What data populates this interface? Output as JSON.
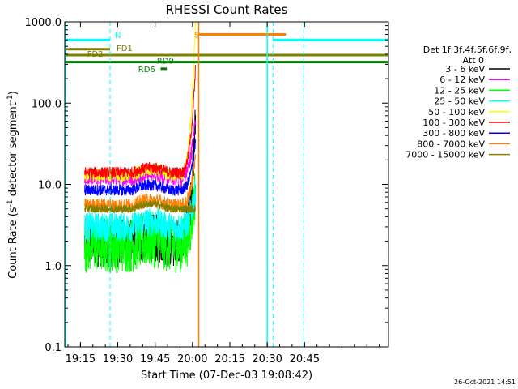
{
  "chart_data": {
    "type": "line",
    "title": "RHESSI Count Rates",
    "xlabel": "Start Time (07-Dec-03 19:08:42)",
    "ylabel_main": "Count Rate (s",
    "ylabel_sup1": "-1",
    "ylabel_mid": " detector segment",
    "ylabel_sup2": "-1",
    "ylabel_end": ")",
    "yscale": "log",
    "ylim": [
      0.1,
      1000
    ],
    "xlim_minutes": [
      0,
      130
    ],
    "x_ticks": [
      {
        "label": "19:15",
        "min": 6.3
      },
      {
        "label": "19:30",
        "min": 21.3
      },
      {
        "label": "19:45",
        "min": 36.3
      },
      {
        "label": "20:00",
        "min": 51.3
      },
      {
        "label": "20:15",
        "min": 66.3
      },
      {
        "label": "20:30",
        "min": 81.3
      },
      {
        "label": "20:45",
        "min": 96.3
      }
    ],
    "y_ticks": [
      {
        "label": "1000.0",
        "v": 1000
      },
      {
        "label": "100.0",
        "v": 100
      },
      {
        "label": "10.0",
        "v": 10
      },
      {
        "label": "1.0",
        "v": 1
      },
      {
        "label": "0.1",
        "v": 0.1
      }
    ],
    "legend_header": [
      "Det 1f,3f,4f,5f,6f,9f,",
      "Att 0"
    ],
    "series": [
      {
        "name": "3 - 6 keV",
        "color": "#000000",
        "level": 1.9,
        "noise": 0.3,
        "peak": 45
      },
      {
        "name": "6 - 12 keV",
        "color": "#ff00ff",
        "level": 12.0,
        "noise": 0.1,
        "peak": 60
      },
      {
        "name": "12 - 25 keV",
        "color": "#00ff00",
        "level": 1.8,
        "noise": 0.35,
        "peak": 8
      },
      {
        "name": "25 - 50 keV",
        "color": "#00ffff",
        "level": 3.0,
        "noise": 0.18,
        "peak": 8
      },
      {
        "name": "50 - 100 keV",
        "color": "#ffff00",
        "level": 13.0,
        "noise": 0.08,
        "peak": 700
      },
      {
        "name": "100 - 300 keV",
        "color": "#ff0000",
        "level": 14.0,
        "noise": 0.07,
        "peak": 200
      },
      {
        "name": "300 - 800 keV",
        "color": "#0000ff",
        "level": 8.5,
        "noise": 0.07,
        "peak": 30
      },
      {
        "name": "800 - 7000 keV",
        "color": "#ff7f00",
        "level": 5.5,
        "noise": 0.09,
        "peak": 20
      },
      {
        "name": "7000 - 15000 keV",
        "color": "#7f7f00",
        "level": 5.0,
        "noise": 0.05,
        "peak": 5
      }
    ],
    "data_span_minutes": [
      8.0,
      52.5
    ],
    "rise_start_minutes": 46.0,
    "flare_peak_minutes": 52.3,
    "markers": {
      "night_bands": [
        {
          "start": 0.0,
          "end": 18.2
        },
        {
          "start": 83.6,
          "end": 130.0
        }
      ],
      "night_level": 600,
      "night_label": "N",
      "saa_band": {
        "start": 53.8,
        "end": 88.8,
        "level": 700
      },
      "saa_label": "S",
      "saa_vline_minutes": 53.8,
      "fd1": {
        "start": 0.0,
        "end": 130.0,
        "level": 390,
        "label": "FD1",
        "left_level": 460,
        "left_end": 18.2
      },
      "fd2_label": "FD2",
      "rd9": {
        "start": 0.0,
        "end": 130.0,
        "level": 320,
        "label": "RD9"
      },
      "rd6": {
        "start": 38.5,
        "end": 41.0,
        "level": 265,
        "label": "RD6"
      },
      "dashed_vlines_minutes": [
        18.2,
        83.6,
        96.0
      ],
      "solid_vlines_minutes": [
        0.2,
        81.3
      ]
    }
  },
  "footer_timestamp": "26-Oct-2021 14:51"
}
